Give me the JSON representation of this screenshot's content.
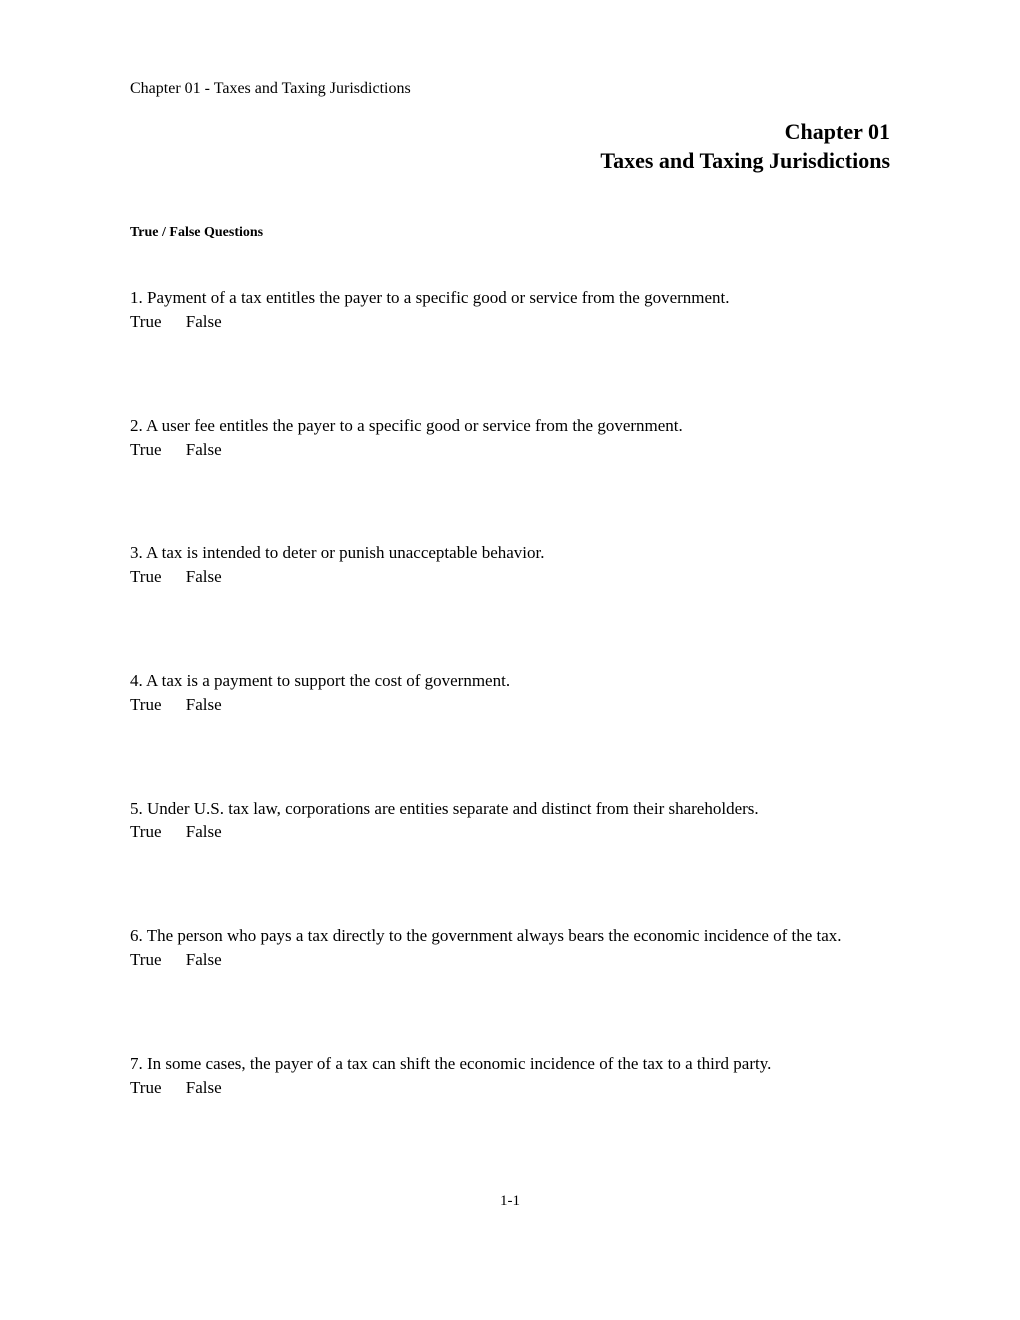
{
  "header": {
    "chapter_ref": "Chapter 01 - Taxes and Taxing Jurisdictions"
  },
  "title": {
    "line1": "Chapter 01",
    "line2": "Taxes and Taxing Jurisdictions"
  },
  "section_heading": "True / False Questions",
  "questions": [
    {
      "text": "1. Payment of a tax entitles the payer to a specific good or service from the government.",
      "true_label": "True",
      "false_label": "False"
    },
    {
      "text": "2. A user fee entitles the payer to a specific good or service from the government.",
      "true_label": "True",
      "false_label": "False"
    },
    {
      "text": "3. A tax is intended to deter or punish unacceptable behavior.",
      "true_label": "True",
      "false_label": "False"
    },
    {
      "text": "4. A tax is a payment to support the cost of government.",
      "true_label": "True",
      "false_label": "False"
    },
    {
      "text": "5. Under U.S. tax law, corporations are entities separate and distinct from their shareholders.",
      "true_label": "True",
      "false_label": "False"
    },
    {
      "text": "6. The person who pays a tax directly to the government always bears the economic incidence of the tax.",
      "true_label": "True",
      "false_label": "False"
    },
    {
      "text": "7. In some cases, the payer of a tax can shift the economic incidence of the tax to a third party.",
      "true_label": "True",
      "false_label": "False"
    }
  ],
  "page_number": "1-1",
  "colors": {
    "background": "#ffffff",
    "text": "#000000"
  },
  "typography": {
    "body_fontsize": 17,
    "header_fontsize": 16,
    "title_fontsize": 22,
    "section_heading_fontsize": 14,
    "page_number_fontsize": 15,
    "font_family": "Times New Roman"
  }
}
